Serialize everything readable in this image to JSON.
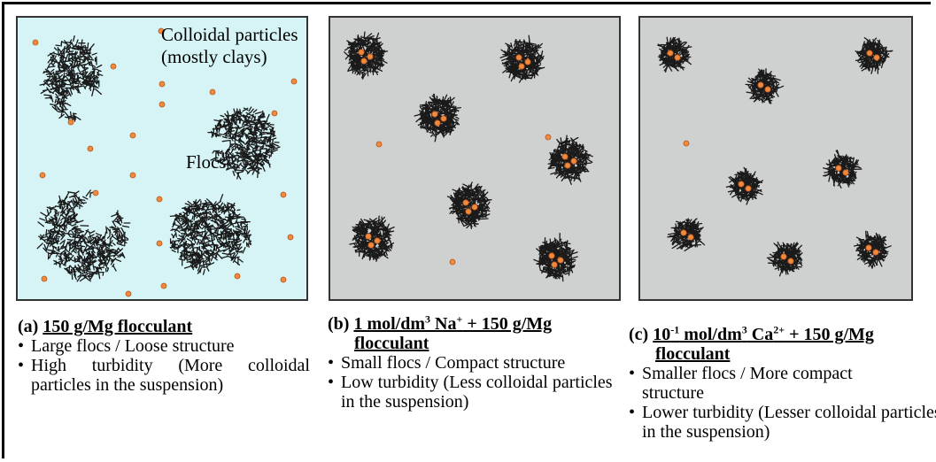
{
  "panel_a": {
    "label_colloidal_1": "Colloidal particles",
    "label_colloidal_2": "(mostly clays)",
    "label_flocs": "Flocs",
    "bg_color": "#d6f4f6"
  },
  "panel_b": {
    "bg_color": "#cfd0d0"
  },
  "panel_c": {
    "bg_color": "#cfd0d0"
  },
  "particle_color": "#f08a3c",
  "floc_color": "#1a1a1a",
  "captions": {
    "a": {
      "prefix": "(a)",
      "title": "150 g/Mg flocculant",
      "bullets": [
        "Large flocs / Loose structure",
        "High turbidity (More colloidal particles in the suspension)"
      ]
    },
    "b": {
      "prefix": "(b)",
      "title_pre": "1 mol/dm",
      "title_sup1": "3",
      "title_mid": " Na",
      "title_sup2": "+",
      "title_post": " + 150 g/Mg",
      "title_line2": "flocculant",
      "bullets": [
        "Small flocs / Compact structure",
        "Low turbidity (Less colloidal particles in the suspension)"
      ]
    },
    "c": {
      "prefix": "(c)",
      "title_pre": "10",
      "title_sup1": "-1",
      "title_mid": " mol/dm",
      "title_sup2": "3",
      "title_mid2": " Ca",
      "title_sup3": "2+",
      "title_post": " + 150 g/Mg",
      "title_line2": "flocculant",
      "bullets": [
        "Smaller flocs / More compact structure",
        "Lower turbidity (Lesser colloidal particles in the suspension)"
      ]
    }
  }
}
